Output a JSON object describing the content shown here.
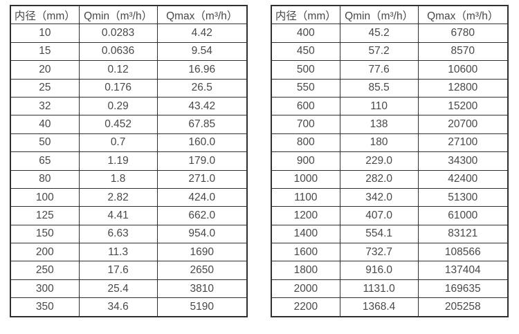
{
  "colors": {
    "border": "#2e2e2e",
    "text": "#484848",
    "background": "#ffffff"
  },
  "tables": [
    {
      "name": "flow-range-table-small-diameters",
      "headers": [
        "内径（mm）",
        "Qmin（m³/h）",
        "Qmax（m³/h）"
      ],
      "rows": [
        [
          "10",
          "0.0283",
          "4.42"
        ],
        [
          "15",
          "0.0636",
          "9.54"
        ],
        [
          "20",
          "0.12",
          "16.96"
        ],
        [
          "25",
          "0.176",
          "26.5"
        ],
        [
          "32",
          "0.29",
          "43.42"
        ],
        [
          "40",
          "0.452",
          "67.85"
        ],
        [
          "50",
          "0.7",
          "160.0"
        ],
        [
          "65",
          "1.19",
          "179.0"
        ],
        [
          "80",
          "1.8",
          "271.0"
        ],
        [
          "100",
          "2.82",
          "424.0"
        ],
        [
          "125",
          "4.41",
          "662.0"
        ],
        [
          "150",
          "6.63",
          "954.0"
        ],
        [
          "200",
          "11.3",
          "1690"
        ],
        [
          "250",
          "17.6",
          "2650"
        ],
        [
          "300",
          "25.4",
          "3810"
        ],
        [
          "350",
          "34.6",
          "5190"
        ]
      ]
    },
    {
      "name": "flow-range-table-large-diameters",
      "headers": [
        "内径（mm）",
        "Qmin（m³/h）",
        "Qmax（m³/h）"
      ],
      "rows": [
        [
          "400",
          "45.2",
          "6780"
        ],
        [
          "450",
          "57.2",
          "8570"
        ],
        [
          "500",
          "77.6",
          "10600"
        ],
        [
          "550",
          "85.5",
          "12800"
        ],
        [
          "600",
          "110",
          "15200"
        ],
        [
          "700",
          "138",
          "20700"
        ],
        [
          "800",
          "180",
          "27100"
        ],
        [
          "900",
          "229.0",
          "34300"
        ],
        [
          "1000",
          "282.0",
          "42400"
        ],
        [
          "1100",
          "342.0",
          "51300"
        ],
        [
          "1200",
          "407.0",
          "61000"
        ],
        [
          "1400",
          "554.1",
          "83121"
        ],
        [
          "1600",
          "732.7",
          "108566"
        ],
        [
          "1800",
          "916.0",
          "137404"
        ],
        [
          "2000",
          "1131.0",
          "169635"
        ],
        [
          "2200",
          "1368.4",
          "205258"
        ]
      ]
    }
  ]
}
